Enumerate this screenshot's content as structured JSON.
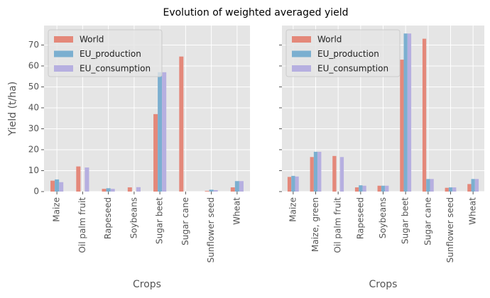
{
  "title": "Evolution of weighted averaged yield",
  "chart_data": [
    {
      "type": "bar",
      "xlabel": "Crops",
      "ylabel": "Yield (t/ha)",
      "categories": [
        "Maize",
        "Oil palm fruit",
        "Rapeseed",
        "Soybeans",
        "Sugar beet",
        "Sugar cane",
        "Sunflower seed",
        "Wheat"
      ],
      "series": [
        {
          "name": "World",
          "color": "#e4887a",
          "values": [
            5.2,
            12,
            1.3,
            2,
            37,
            64.5,
            0.3,
            2
          ]
        },
        {
          "name": "EU_production",
          "color": "#7bafd0",
          "values": [
            5.8,
            null,
            1.6,
            null,
            57,
            null,
            0.9,
            5
          ]
        },
        {
          "name": "EU_consumption",
          "color": "#b6afe0",
          "values": [
            4.5,
            11.5,
            1.3,
            2.1,
            57,
            null,
            0.7,
            5
          ]
        }
      ],
      "ylim": [
        0,
        79.3
      ],
      "yticks": [
        0,
        10,
        20,
        30,
        40,
        50,
        60,
        70
      ],
      "grid": true,
      "legend": "upper left",
      "show_ytick_labels": true
    },
    {
      "type": "bar",
      "xlabel": "Crops",
      "categories": [
        "Maize",
        "Maize, green",
        "Oil palm fruit",
        "Rapeseed",
        "Soybeans",
        "Sugar beet",
        "Sugar cane",
        "Sunflower seed",
        "Wheat"
      ],
      "series": [
        {
          "name": "World",
          "color": "#e4887a",
          "values": [
            7,
            16.5,
            17,
            2,
            2.8,
            63,
            73,
            1.8,
            3.6
          ]
        },
        {
          "name": "EU_production",
          "color": "#7bafd0",
          "values": [
            7.5,
            19,
            null,
            3,
            2.8,
            75.5,
            6,
            2,
            6
          ]
        },
        {
          "name": "EU_consumption",
          "color": "#b6afe0",
          "values": [
            7.2,
            19,
            16.5,
            2.8,
            2.8,
            75.5,
            6,
            2,
            6
          ]
        }
      ],
      "ylim": [
        0,
        79.3
      ],
      "yticks": [
        0,
        10,
        20,
        30,
        40,
        50,
        60,
        70
      ],
      "grid": true,
      "legend": "upper left",
      "show_ytick_labels": false
    }
  ]
}
